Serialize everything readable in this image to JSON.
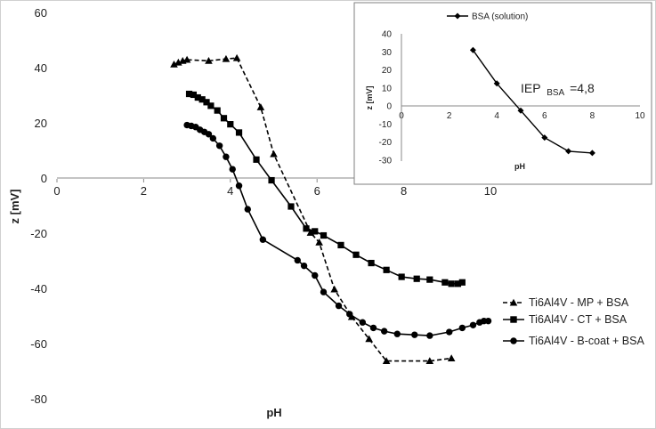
{
  "chart_data": [
    {
      "type": "line",
      "title": "",
      "xlabel": "pH",
      "ylabel": "z [mV]",
      "xlim": [
        0,
        10
      ],
      "ylim": [
        -80,
        60
      ],
      "xticks": [
        0,
        2,
        4,
        6,
        8,
        10
      ],
      "yticks": [
        -80,
        -60,
        -40,
        -20,
        0,
        20,
        40,
        60
      ],
      "grid": false,
      "legend_position": "bottom-right",
      "series": [
        {
          "name": "Ti6Al4V - MP + BSA",
          "marker": "triangle",
          "dashed": true,
          "points": [
            [
              2.7,
              41.5
            ],
            [
              2.8,
              42.2
            ],
            [
              2.9,
              42.8
            ],
            [
              3.0,
              43.2
            ],
            [
              3.5,
              42.8
            ],
            [
              3.9,
              43.5
            ],
            [
              4.15,
              43.8
            ],
            [
              4.7,
              26
            ],
            [
              5.0,
              9
            ],
            [
              5.85,
              -19.5
            ],
            [
              6.05,
              -23
            ],
            [
              6.4,
              -40
            ],
            [
              6.8,
              -50
            ],
            [
              7.2,
              -58
            ],
            [
              7.6,
              -66
            ],
            [
              8.6,
              -66
            ],
            [
              9.1,
              -65
            ]
          ]
        },
        {
          "name": "Ti6Al4V - CT + BSA",
          "marker": "square",
          "dashed": false,
          "points": [
            [
              3.05,
              30.8
            ],
            [
              3.15,
              30.5
            ],
            [
              3.25,
              29.5
            ],
            [
              3.35,
              28.8
            ],
            [
              3.45,
              27.8
            ],
            [
              3.55,
              26.5
            ],
            [
              3.7,
              24.8
            ],
            [
              3.85,
              22
            ],
            [
              4.0,
              19.8
            ],
            [
              4.2,
              16.8
            ],
            [
              4.6,
              7
            ],
            [
              4.95,
              -0.5
            ],
            [
              5.4,
              -10
            ],
            [
              5.75,
              -18
            ],
            [
              5.95,
              -19
            ],
            [
              6.15,
              -20.5
            ],
            [
              6.55,
              -24
            ],
            [
              6.9,
              -27.5
            ],
            [
              7.25,
              -30.5
            ],
            [
              7.6,
              -33
            ],
            [
              7.95,
              -35.5
            ],
            [
              8.3,
              -36.2
            ],
            [
              8.6,
              -36.5
            ],
            [
              8.95,
              -37.5
            ],
            [
              9.1,
              -38
            ],
            [
              9.25,
              -38
            ],
            [
              9.35,
              -37.5
            ]
          ]
        },
        {
          "name": "Ti6Al4V - B-coat + BSA",
          "marker": "circle",
          "dashed": false,
          "points": [
            [
              3.0,
              19.5
            ],
            [
              3.1,
              19.2
            ],
            [
              3.2,
              18.8
            ],
            [
              3.3,
              17.8
            ],
            [
              3.4,
              17
            ],
            [
              3.5,
              16.2
            ],
            [
              3.6,
              14.7
            ],
            [
              3.75,
              12
            ],
            [
              3.9,
              8
            ],
            [
              4.05,
              3.5
            ],
            [
              4.2,
              -2.5
            ],
            [
              4.4,
              -11
            ],
            [
              4.75,
              -22
            ],
            [
              5.55,
              -29.5
            ],
            [
              5.7,
              -31.5
            ],
            [
              5.95,
              -35
            ],
            [
              6.15,
              -41
            ],
            [
              6.5,
              -46
            ],
            [
              6.75,
              -49
            ],
            [
              7.05,
              -52
            ],
            [
              7.3,
              -54
            ],
            [
              7.55,
              -55.2
            ],
            [
              7.85,
              -56.2
            ],
            [
              8.25,
              -56.5
            ],
            [
              8.6,
              -56.8
            ],
            [
              9.05,
              -55.5
            ],
            [
              9.35,
              -54
            ],
            [
              9.6,
              -53
            ],
            [
              9.75,
              -52
            ],
            [
              9.85,
              -51.5
            ],
            [
              9.95,
              -51.5
            ]
          ]
        }
      ]
    },
    {
      "type": "line",
      "title": "",
      "xlabel": "pH",
      "ylabel": "z [mV]",
      "xlim": [
        0,
        10
      ],
      "ylim": [
        -30,
        40
      ],
      "xticks": [
        0,
        2,
        4,
        6,
        8,
        10
      ],
      "yticks": [
        -30,
        -20,
        -10,
        0,
        10,
        20,
        30,
        40
      ],
      "grid": false,
      "legend_position": "top",
      "annotation": {
        "main": "IEP",
        "sub": "BSA",
        "value": "=4,8"
      },
      "series": [
        {
          "name": "BSA (solution)",
          "marker": "diamond",
          "dashed": false,
          "points": [
            [
              3,
              31
            ],
            [
              4,
              12.5
            ],
            [
              5,
              -2.5
            ],
            [
              6,
              -17.5
            ],
            [
              7,
              -25
            ],
            [
              8,
              -26
            ]
          ]
        }
      ]
    }
  ]
}
